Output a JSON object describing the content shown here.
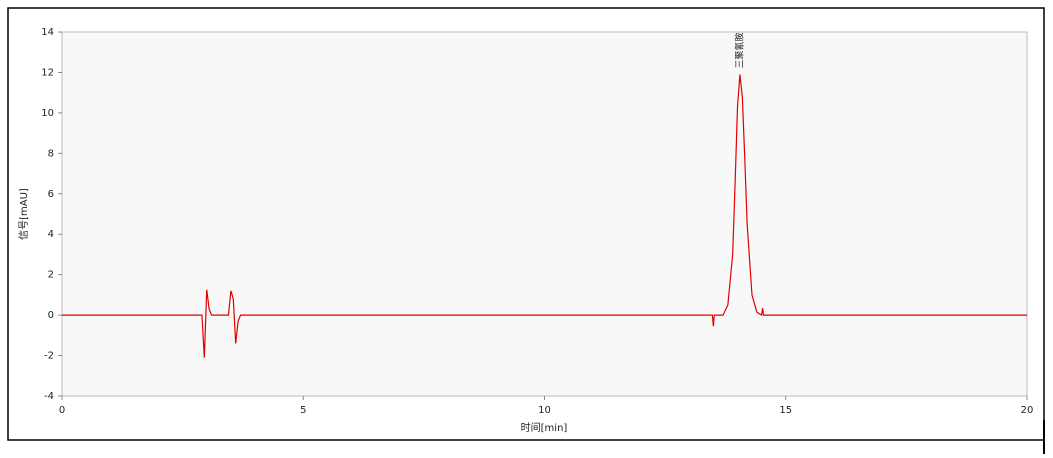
{
  "chart_data": {
    "type": "line",
    "xlabel": "时间[min]",
    "ylabel": "信号[mAU]",
    "x": [
      0,
      2.9,
      2.95,
      3.0,
      3.05,
      3.1,
      3.45,
      3.5,
      3.55,
      3.6,
      3.65,
      3.7,
      13.48,
      13.5,
      13.52,
      13.7,
      13.8,
      13.9,
      13.95,
      14.0,
      14.05,
      14.1,
      14.15,
      14.2,
      14.3,
      14.4,
      14.5,
      14.52,
      14.54,
      20
    ],
    "values": [
      0,
      0,
      -2.1,
      1.25,
      0.3,
      0,
      0,
      1.2,
      0.8,
      -1.4,
      -0.3,
      0,
      0,
      -0.55,
      0,
      0,
      0.5,
      3.0,
      6.5,
      10.3,
      11.9,
      10.8,
      7.8,
      4.5,
      1.0,
      0.15,
      0,
      0.35,
      0,
      0
    ],
    "color": "#e00000",
    "xlim": [
      0,
      20
    ],
    "xticks": [
      0,
      5,
      10,
      15,
      20
    ],
    "ylim": [
      -4,
      14
    ],
    "yticks": [
      -4,
      -2,
      0,
      2,
      4,
      6,
      8,
      10,
      12,
      14
    ],
    "grid": false,
    "annotations": [
      {
        "text": "三聚氰胺",
        "x": 14.05,
        "y": 11.9
      }
    ]
  }
}
